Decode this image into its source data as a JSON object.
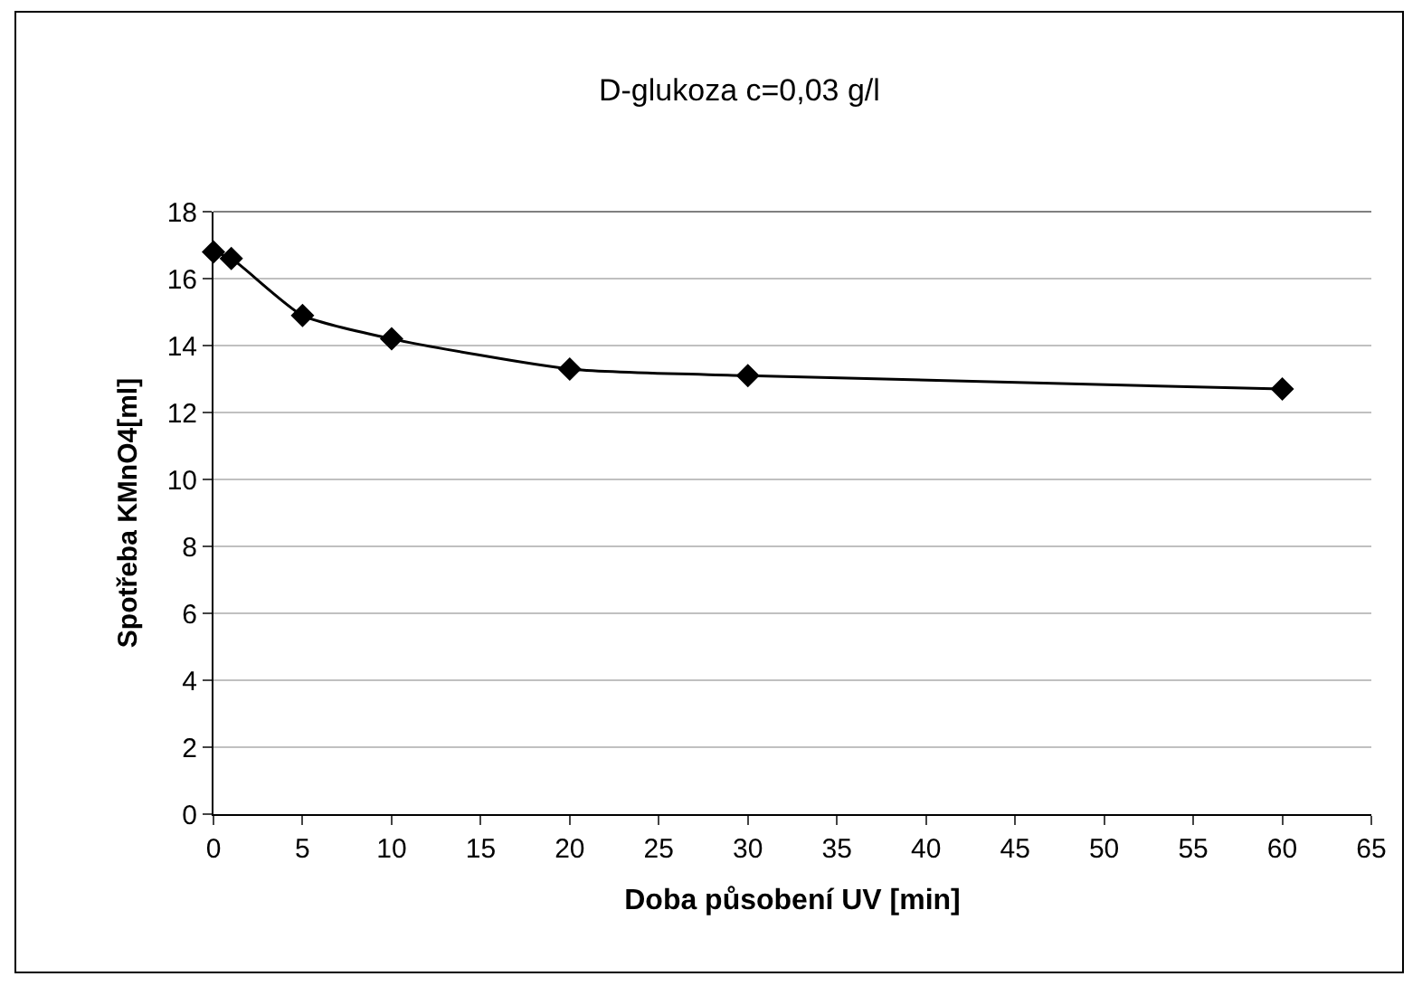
{
  "chart_data": {
    "type": "line",
    "title": "D-glukoza c=0,03 g/l",
    "xlabel": "Doba působení UV [min]",
    "ylabel": "Spotřeba KMnO4[ml]",
    "x": [
      0,
      1,
      5,
      10,
      20,
      30,
      60
    ],
    "series": [
      {
        "color": "#000000",
        "values": [
          16.8,
          16.6,
          14.9,
          14.2,
          13.3,
          13.1,
          12.7
        ]
      }
    ],
    "xlim": [
      0,
      65
    ],
    "xticks": [
      0,
      5,
      10,
      15,
      20,
      25,
      30,
      35,
      40,
      45,
      50,
      55,
      60,
      65
    ],
    "ylim": [
      0,
      18
    ],
    "yticks": [
      0,
      2,
      4,
      6,
      8,
      10,
      12,
      14,
      16,
      18
    ],
    "grid": "y",
    "marker": "diamond",
    "line_style": "solid"
  }
}
